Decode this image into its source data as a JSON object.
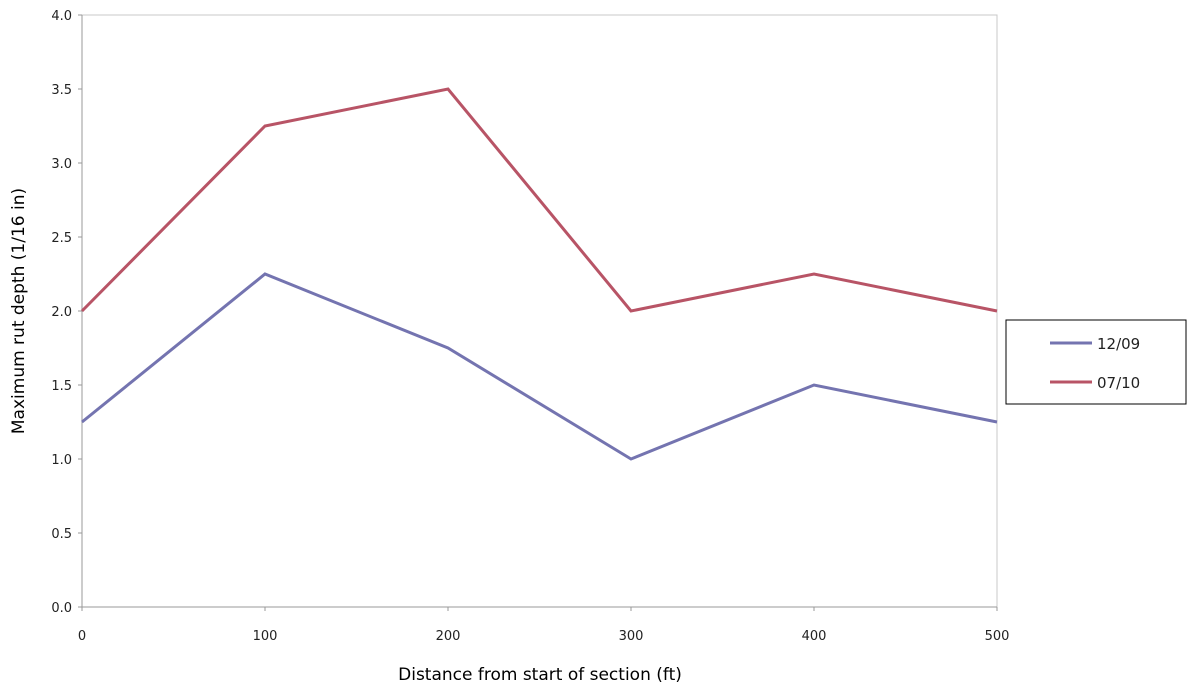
{
  "chart_data": {
    "type": "line",
    "title": "",
    "xlabel": "Distance from start of section (ft)",
    "ylabel": "Maximum rut depth (1/16 in)",
    "x": [
      0,
      100,
      200,
      300,
      400,
      500
    ],
    "xlim": [
      0,
      500
    ],
    "ylim": [
      0.0,
      4.0
    ],
    "x_ticks": [
      "0",
      "100",
      "200",
      "300",
      "400",
      "500"
    ],
    "y_ticks": [
      "0.0",
      "0.5",
      "1.0",
      "1.5",
      "2.0",
      "2.5",
      "3.0",
      "3.5",
      "4.0"
    ],
    "grid": false,
    "legend_position": "right",
    "series": [
      {
        "name": "12/09",
        "color": "#7474b0",
        "values": [
          1.25,
          2.25,
          1.75,
          1.0,
          1.5,
          1.25
        ]
      },
      {
        "name": "07/10",
        "color": "#b85466",
        "values": [
          2.0,
          3.25,
          3.5,
          2.0,
          2.25,
          2.0
        ]
      }
    ]
  }
}
